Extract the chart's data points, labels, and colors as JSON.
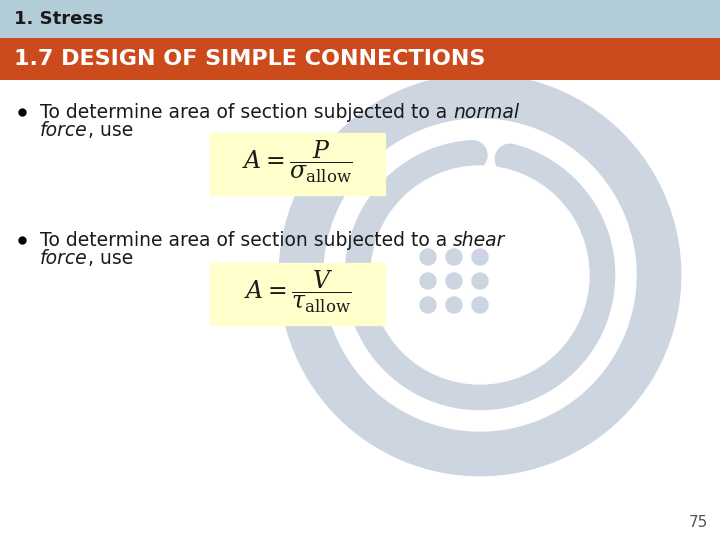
{
  "title_bar_text": "1. Stress",
  "title_bar_bg": "#b3cdd8",
  "title_bar_fg": "#1a1a1a",
  "subtitle_bar_text": "1.7 DESIGN OF SIMPLE CONNECTIONS",
  "subtitle_bar_bg": "#cc4b1c",
  "subtitle_bar_fg": "#ffffff",
  "bg_color": "#ffffff",
  "formula1_box_color": "#ffffcc",
  "formula2_box_color": "#ffffcc",
  "watermark_color": "#ccd5e0",
  "page_number": "75",
  "text_color": "#1a1a1a"
}
